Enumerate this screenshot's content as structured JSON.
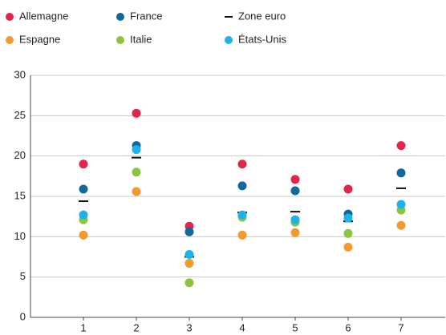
{
  "chart_data": {
    "type": "dot",
    "categories": [
      "1",
      "2",
      "3",
      "4",
      "5",
      "6",
      "7"
    ],
    "series": [
      {
        "name": "Allemagne",
        "color": "#e4254a",
        "marker": "dot",
        "values": [
          19.0,
          25.3,
          11.3,
          19.0,
          17.1,
          15.9,
          21.3
        ]
      },
      {
        "name": "France",
        "color": "#0f6a9a",
        "marker": "dot",
        "values": [
          15.9,
          21.3,
          10.6,
          16.3,
          15.7,
          12.8,
          17.9
        ]
      },
      {
        "name": "Zone euro",
        "color": "#111111",
        "marker": "dash",
        "values": [
          14.4,
          19.8,
          7.5,
          13.0,
          13.1,
          11.9,
          16.0
        ]
      },
      {
        "name": "Espagne",
        "color": "#f39a2e",
        "marker": "dot",
        "values": [
          10.2,
          15.6,
          6.7,
          10.2,
          10.5,
          8.7,
          11.4
        ]
      },
      {
        "name": "Italie",
        "color": "#8cc43f",
        "marker": "dot",
        "values": [
          12.1,
          18.0,
          4.3,
          12.4,
          11.8,
          10.4,
          13.3
        ]
      },
      {
        "name": "États-Unis",
        "color": "#1bb3ea",
        "marker": "dot",
        "values": [
          12.7,
          20.8,
          7.8,
          12.7,
          12.1,
          12.3,
          14.0
        ]
      }
    ],
    "ylim": [
      0,
      30
    ],
    "yticks": [
      0,
      5,
      10,
      15,
      20,
      25,
      30
    ],
    "grid": true,
    "legend": "top"
  }
}
